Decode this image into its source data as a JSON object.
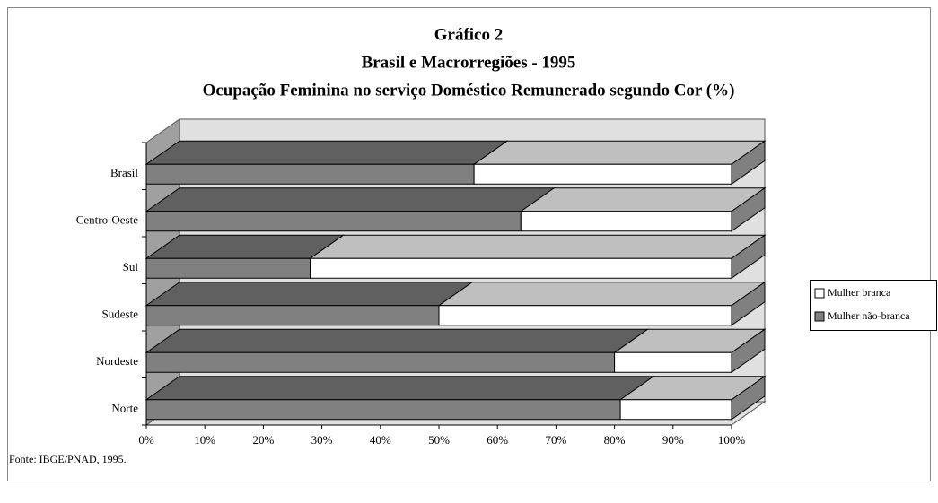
{
  "chart_data": {
    "type": "bar3d_stacked_horizontal",
    "title": [
      "Gráfico 2",
      "Brasil e Macrorregiões - 1995",
      "Ocupação Feminina no serviço Doméstico Remunerado segundo Cor (%)"
    ],
    "categories": [
      "Brasil",
      "Centro-Oeste",
      "Sul",
      "Sudeste",
      "Nordeste",
      "Norte"
    ],
    "series": [
      {
        "name": "Mulher branca",
        "color": "#ffffff",
        "values": [
          44,
          36,
          72,
          50,
          20,
          19
        ]
      },
      {
        "name": "Mulher não-branca",
        "color": "#808080",
        "values": [
          56,
          64,
          28,
          50,
          80,
          81
        ]
      }
    ],
    "xlim": [
      0,
      100
    ],
    "xticks": [
      {
        "value": 0,
        "label": "0%"
      },
      {
        "value": 10,
        "label": "10%"
      },
      {
        "value": 20,
        "label": "20%"
      },
      {
        "value": 30,
        "label": "30%"
      },
      {
        "value": 40,
        "label": "40%"
      },
      {
        "value": 50,
        "label": "50%"
      },
      {
        "value": 60,
        "label": "60%"
      },
      {
        "value": 70,
        "label": "70%"
      },
      {
        "value": 80,
        "label": "80%"
      },
      {
        "value": 90,
        "label": "90%"
      },
      {
        "value": 100,
        "label": "100%"
      }
    ],
    "legend": "right",
    "source": "Fonte: IBGE/PNAD, 1995."
  }
}
